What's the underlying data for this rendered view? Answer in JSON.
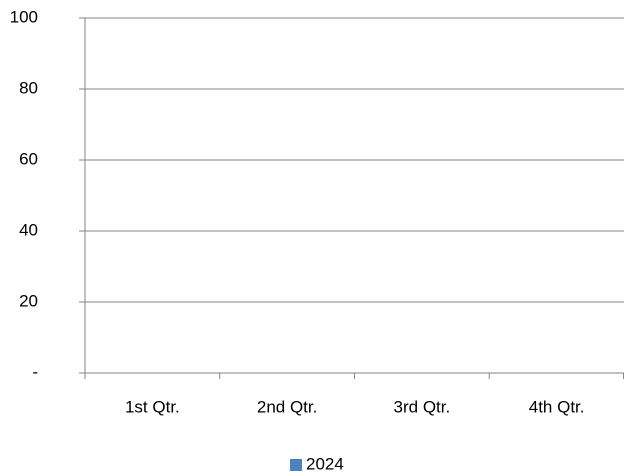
{
  "chart_data": {
    "type": "bar",
    "categories": [
      "1st Qtr.",
      "2nd Qtr.",
      "3rd Qtr.",
      "4th Qtr."
    ],
    "series": [
      {
        "name": "2024",
        "color": "#4f81bd",
        "values": [
          null,
          null,
          null,
          null
        ]
      }
    ],
    "ylim": [
      0,
      100
    ],
    "yticks": [
      {
        "value": 0,
        "label": "-"
      },
      20,
      40,
      60,
      80,
      100
    ],
    "grid": true,
    "legend": "bottom"
  }
}
